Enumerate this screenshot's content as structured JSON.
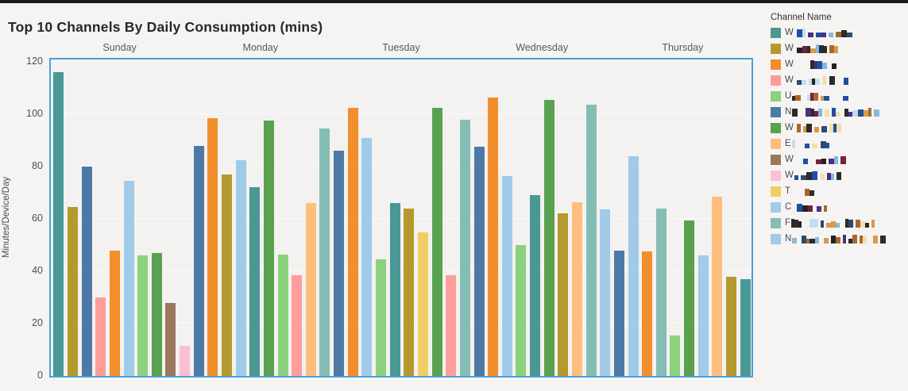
{
  "page": {
    "title": "Top 10 Channels By Daily Consumption (mins)"
  },
  "chart_data": {
    "type": "bar",
    "title": "Top 10 Channels By Daily Consumption (mins)",
    "xlabel": "",
    "ylabel": "Minutes/Device/Day",
    "ylim": [
      0,
      120
    ],
    "yticks": [
      0,
      20,
      40,
      60,
      80,
      100,
      120
    ],
    "grid": true,
    "legend_title": "Channel Name",
    "legend_position": "right",
    "categories": [
      "Sunday",
      "Monday",
      "Tuesday",
      "Wednesday",
      "Thursday"
    ],
    "legend": [
      {
        "visible_prefix": "W",
        "name_redacted": true,
        "color": "#499894",
        "redacted_width": 52
      },
      {
        "visible_prefix": "W",
        "name_redacted": true,
        "color": "#B6992D",
        "redacted_width": 46
      },
      {
        "visible_prefix": "W",
        "name_redacted": true,
        "color": "#F28E2B",
        "redacted_width": 50
      },
      {
        "visible_prefix": "W",
        "name_redacted": true,
        "color": "#FF9D9A",
        "redacted_width": 52
      },
      {
        "visible_prefix": "U",
        "name_redacted": true,
        "color": "#8CD17D",
        "redacted_width": 56
      },
      {
        "visible_prefix": "N",
        "name_redacted": true,
        "color": "#4E79A7",
        "redacted_width": 100
      },
      {
        "visible_prefix": "W",
        "name_redacted": true,
        "color": "#59A14F",
        "redacted_width": 46
      },
      {
        "visible_prefix": "E",
        "name_redacted": true,
        "color": "#FFBE7D",
        "redacted_width": 44
      },
      {
        "visible_prefix": "W",
        "name_redacted": true,
        "color": "#9D7660",
        "redacted_width": 50
      },
      {
        "visible_prefix": "W",
        "name_redacted": true,
        "color": "#FABFD2",
        "redacted_width": 50
      },
      {
        "visible_prefix": "T",
        "name_redacted": true,
        "color": "#F1CE63",
        "redacted_width": 26
      },
      {
        "visible_prefix": "C",
        "name_redacted": true,
        "color": "#A0CBE8",
        "redacted_width": 38
      },
      {
        "visible_prefix": "F",
        "name_redacted": true,
        "color": "#86BCB6",
        "redacted_width": 92
      },
      {
        "visible_prefix": "N",
        "name_redacted": true,
        "color": "#A1CBE9",
        "redacted_width": 100
      }
    ],
    "groups": [
      {
        "day": "Sunday",
        "bars": [
          {
            "legend": 0,
            "value": 116
          },
          {
            "legend": 1,
            "value": 64.5
          },
          {
            "legend": 5,
            "value": 80
          },
          {
            "legend": 3,
            "value": 30
          },
          {
            "legend": 2,
            "value": 48
          },
          {
            "legend": 11,
            "value": 74.5
          },
          {
            "legend": 4,
            "value": 46
          },
          {
            "legend": 6,
            "value": 47
          },
          {
            "legend": 8,
            "value": 28
          },
          {
            "legend": 9,
            "value": 11.5
          }
        ]
      },
      {
        "day": "Monday",
        "bars": [
          {
            "legend": 5,
            "value": 88
          },
          {
            "legend": 2,
            "value": 98.5
          },
          {
            "legend": 1,
            "value": 77
          },
          {
            "legend": 11,
            "value": 82.5
          },
          {
            "legend": 0,
            "value": 72
          },
          {
            "legend": 6,
            "value": 97.5
          },
          {
            "legend": 4,
            "value": 46.5
          },
          {
            "legend": 3,
            "value": 38.5
          },
          {
            "legend": 7,
            "value": 66
          },
          {
            "legend": 12,
            "value": 94.5
          }
        ]
      },
      {
        "day": "Tuesday",
        "bars": [
          {
            "legend": 5,
            "value": 86
          },
          {
            "legend": 2,
            "value": 102.5
          },
          {
            "legend": 11,
            "value": 91
          },
          {
            "legend": 4,
            "value": 44.5
          },
          {
            "legend": 0,
            "value": 66
          },
          {
            "legend": 1,
            "value": 64
          },
          {
            "legend": 10,
            "value": 55
          },
          {
            "legend": 6,
            "value": 102.5
          },
          {
            "legend": 3,
            "value": 38.5
          },
          {
            "legend": 12,
            "value": 98
          }
        ]
      },
      {
        "day": "Wednesday",
        "bars": [
          {
            "legend": 5,
            "value": 87.5
          },
          {
            "legend": 2,
            "value": 106.5
          },
          {
            "legend": 11,
            "value": 76.5
          },
          {
            "legend": 4,
            "value": 50
          },
          {
            "legend": 0,
            "value": 69
          },
          {
            "legend": 6,
            "value": 105.5
          },
          {
            "legend": 1,
            "value": 62
          },
          {
            "legend": 7,
            "value": 66.5
          },
          {
            "legend": 12,
            "value": 103.5
          },
          {
            "legend": 13,
            "value": 63.5
          }
        ]
      },
      {
        "day": "Thursday",
        "bars": [
          {
            "legend": 5,
            "value": 48
          },
          {
            "legend": 11,
            "value": 84
          },
          {
            "legend": 2,
            "value": 47.5
          },
          {
            "legend": 12,
            "value": 64
          },
          {
            "legend": 4,
            "value": 15.5
          },
          {
            "legend": 6,
            "value": 59.5
          },
          {
            "legend": 13,
            "value": 46
          },
          {
            "legend": 7,
            "value": 68.5
          },
          {
            "legend": 1,
            "value": 38
          },
          {
            "legend": 0,
            "value": 37
          }
        ]
      }
    ],
    "style": {
      "plot_border_color": "#4d9fd6",
      "plot_background": "#f3f2f0",
      "page_background": "#f5f4f2",
      "topbar_color": "#1a1a1a",
      "gridline_color": "#fbfbf9"
    }
  }
}
